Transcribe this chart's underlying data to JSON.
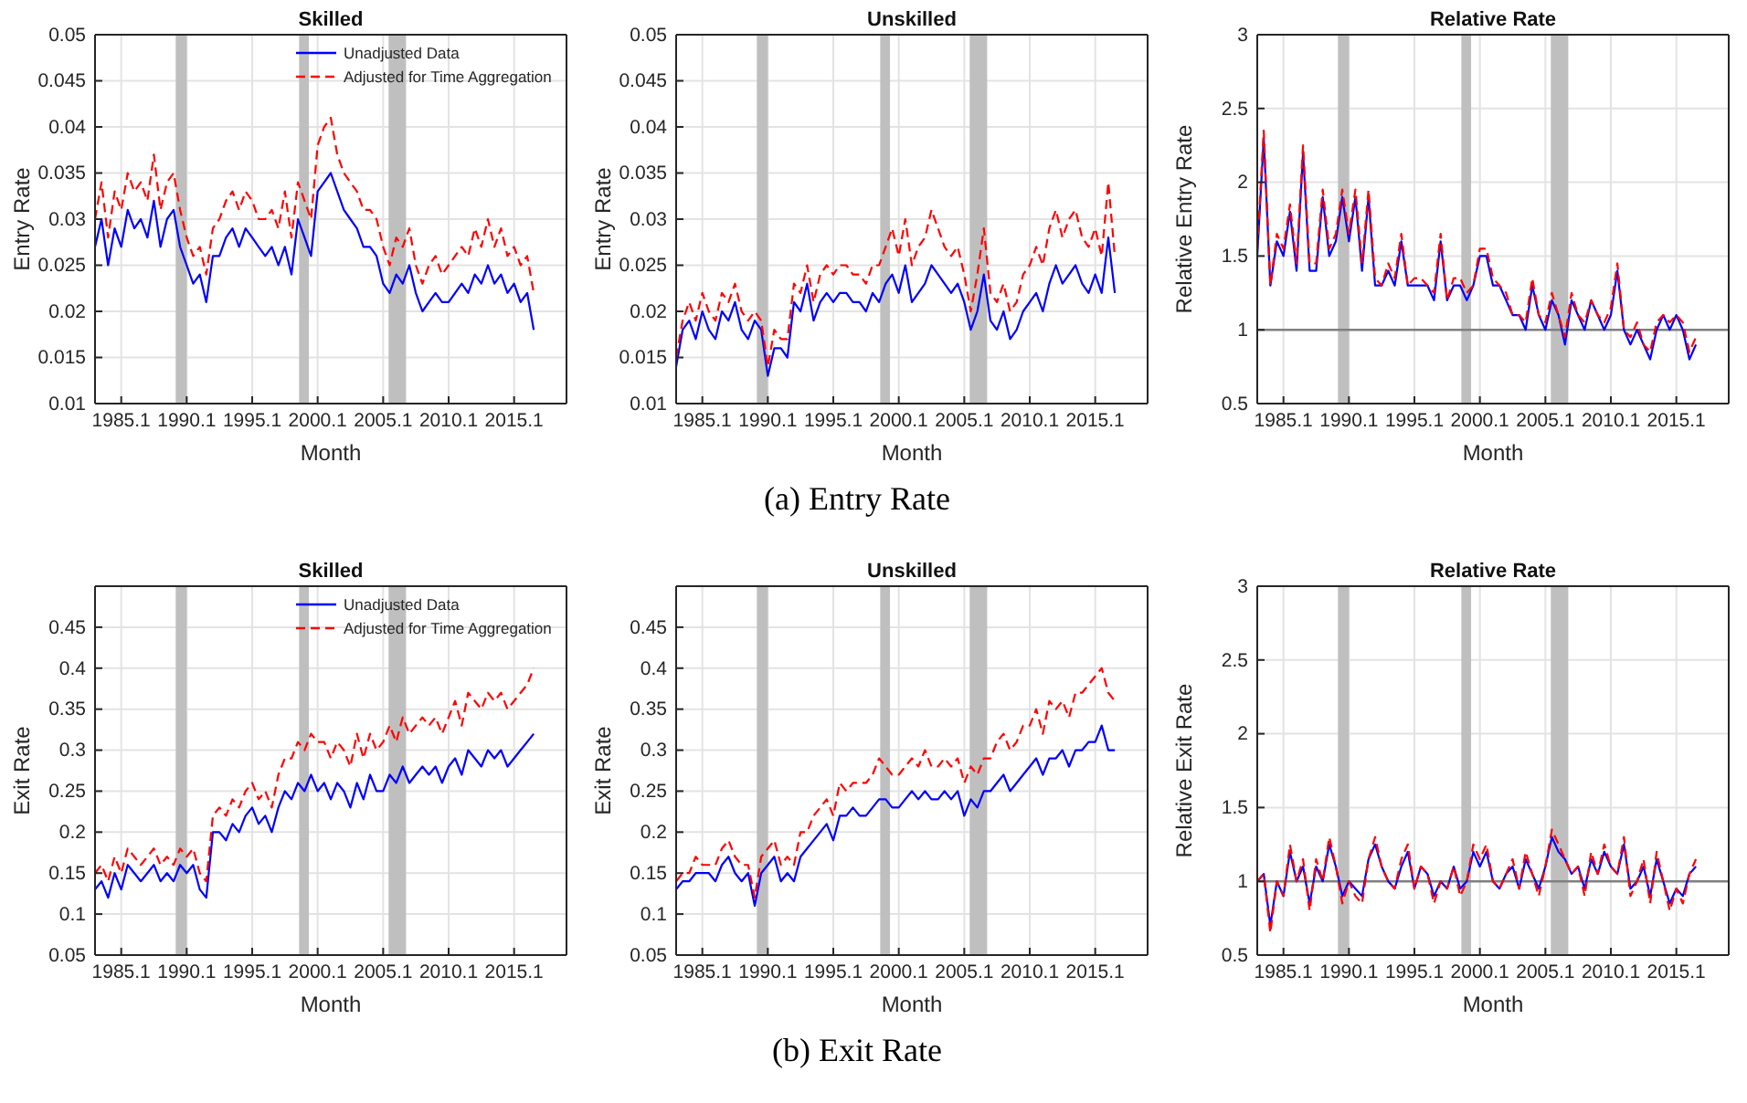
{
  "chart_data": [
    {
      "type": "line",
      "title": "Skilled",
      "xlabel": "Month",
      "ylabel": "Entry Rate",
      "legend": "top right",
      "grid": true,
      "x": [
        "1983-01",
        "1983-07",
        "1984-01",
        "1984-07",
        "1985-01",
        "1985-07",
        "1986-01",
        "1986-07",
        "1987-01",
        "1987-07",
        "1988-01",
        "1988-07",
        "1989-01",
        "1989-07",
        "1990-01",
        "1990-07",
        "1991-01",
        "1991-07",
        "1992-01",
        "1992-07",
        "1993-01",
        "1993-07",
        "1994-01",
        "1994-07",
        "1995-01",
        "1995-07",
        "1996-01",
        "1996-07",
        "1997-01",
        "1997-07",
        "1998-01",
        "1998-07",
        "1999-01",
        "1999-07",
        "2000-01",
        "2000-07",
        "2001-01",
        "2001-07",
        "2002-01",
        "2002-07",
        "2003-01",
        "2003-07",
        "2004-01",
        "2004-07",
        "2005-01",
        "2005-07",
        "2006-01",
        "2006-07",
        "2007-01",
        "2007-07",
        "2008-01",
        "2008-07",
        "2009-01",
        "2009-07",
        "2010-01",
        "2010-07",
        "2011-01",
        "2011-07",
        "2012-01",
        "2012-07",
        "2013-01",
        "2013-07",
        "2014-01",
        "2014-07",
        "2015-01",
        "2015-07",
        "2016-01",
        "2016-07"
      ],
      "xlim": [
        "1983-01",
        "2019-01"
      ],
      "xticks": [
        {
          "value": "1985-01",
          "label": "1985.1"
        },
        {
          "value": "1990-01",
          "label": "1990.1"
        },
        {
          "value": "1995-01",
          "label": "1995.1"
        },
        {
          "value": "2000-01",
          "label": "2000.1"
        },
        {
          "value": "2005-01",
          "label": "2005.1"
        },
        {
          "value": "2010-01",
          "label": "2010.1"
        },
        {
          "value": "2015-01",
          "label": "2015.1"
        }
      ],
      "ylim": [
        0.01,
        0.05
      ],
      "yticks": [
        0.01,
        0.015,
        0.02,
        0.025,
        0.03,
        0.035,
        0.04,
        0.045,
        0.05
      ],
      "bands": [
        {
          "axis": "x",
          "from": "1989-03",
          "to": "1990-01",
          "color": "#bfbfbf"
        },
        {
          "axis": "x",
          "from": "1998-08",
          "to": "1999-05",
          "color": "#bfbfbf"
        },
        {
          "axis": "x",
          "from": "2005-06",
          "to": "2006-10",
          "color": "#bfbfbf"
        }
      ],
      "series": [
        {
          "name": "Unadjusted Data",
          "color": "#0000ff",
          "line_style": "solid",
          "values": [
            0.027,
            0.03,
            0.025,
            0.029,
            0.027,
            0.031,
            0.029,
            0.03,
            0.028,
            0.032,
            0.027,
            0.03,
            0.031,
            0.027,
            0.025,
            0.023,
            0.024,
            0.021,
            0.026,
            0.026,
            0.028,
            0.029,
            0.027,
            0.029,
            0.028,
            0.027,
            0.026,
            0.027,
            0.025,
            0.027,
            0.024,
            0.03,
            0.028,
            0.026,
            0.033,
            0.034,
            0.035,
            0.033,
            0.031,
            0.03,
            0.029,
            0.027,
            0.027,
            0.026,
            0.023,
            0.022,
            0.024,
            0.023,
            0.025,
            0.022,
            0.02,
            0.021,
            0.022,
            0.021,
            0.021,
            0.022,
            0.023,
            0.022,
            0.024,
            0.023,
            0.025,
            0.023,
            0.024,
            0.022,
            0.023,
            0.021,
            0.022,
            0.018
          ]
        },
        {
          "name": "Adjusted for Time Aggregation",
          "color": "#ff0000",
          "line_style": "dashed",
          "values": [
            0.03,
            0.034,
            0.028,
            0.033,
            0.031,
            0.035,
            0.033,
            0.034,
            0.032,
            0.037,
            0.031,
            0.034,
            0.035,
            0.031,
            0.028,
            0.026,
            0.027,
            0.024,
            0.029,
            0.03,
            0.032,
            0.033,
            0.031,
            0.033,
            0.032,
            0.03,
            0.03,
            0.031,
            0.029,
            0.033,
            0.028,
            0.034,
            0.032,
            0.03,
            0.038,
            0.04,
            0.041,
            0.037,
            0.035,
            0.034,
            0.033,
            0.031,
            0.031,
            0.03,
            0.027,
            0.025,
            0.028,
            0.027,
            0.029,
            0.025,
            0.023,
            0.025,
            0.026,
            0.024,
            0.025,
            0.026,
            0.027,
            0.026,
            0.029,
            0.027,
            0.03,
            0.027,
            0.029,
            0.026,
            0.027,
            0.025,
            0.026,
            0.022
          ]
        }
      ]
    },
    {
      "type": "line",
      "title": "Unskilled",
      "xlabel": "Month",
      "ylabel": "Entry Rate",
      "grid": true,
      "annotations": [
        "(a) Entry Rate"
      ],
      "x": [
        "1983-01",
        "1983-07",
        "1984-01",
        "1984-07",
        "1985-01",
        "1985-07",
        "1986-01",
        "1986-07",
        "1987-01",
        "1987-07",
        "1988-01",
        "1988-07",
        "1989-01",
        "1989-07",
        "1990-01",
        "1990-07",
        "1991-01",
        "1991-07",
        "1992-01",
        "1992-07",
        "1993-01",
        "1993-07",
        "1994-01",
        "1994-07",
        "1995-01",
        "1995-07",
        "1996-01",
        "1996-07",
        "1997-01",
        "1997-07",
        "1998-01",
        "1998-07",
        "1999-01",
        "1999-07",
        "2000-01",
        "2000-07",
        "2001-01",
        "2001-07",
        "2002-01",
        "2002-07",
        "2003-01",
        "2003-07",
        "2004-01",
        "2004-07",
        "2005-01",
        "2005-07",
        "2006-01",
        "2006-07",
        "2007-01",
        "2007-07",
        "2008-01",
        "2008-07",
        "2009-01",
        "2009-07",
        "2010-01",
        "2010-07",
        "2011-01",
        "2011-07",
        "2012-01",
        "2012-07",
        "2013-01",
        "2013-07",
        "2014-01",
        "2014-07",
        "2015-01",
        "2015-07",
        "2016-01",
        "2016-07"
      ],
      "xlim": [
        "1983-01",
        "2019-01"
      ],
      "xticks": [
        {
          "value": "1985-01",
          "label": "1985.1"
        },
        {
          "value": "1990-01",
          "label": "1990.1"
        },
        {
          "value": "1995-01",
          "label": "1995.1"
        },
        {
          "value": "2000-01",
          "label": "2000.1"
        },
        {
          "value": "2005-01",
          "label": "2005.1"
        },
        {
          "value": "2010-01",
          "label": "2010.1"
        },
        {
          "value": "2015-01",
          "label": "2015.1"
        }
      ],
      "ylim": [
        0.01,
        0.05
      ],
      "yticks": [
        0.01,
        0.015,
        0.02,
        0.025,
        0.03,
        0.035,
        0.04,
        0.045,
        0.05
      ],
      "bands": [
        {
          "axis": "x",
          "from": "1989-03",
          "to": "1990-01",
          "color": "#bfbfbf"
        },
        {
          "axis": "x",
          "from": "1998-08",
          "to": "1999-05",
          "color": "#bfbfbf"
        },
        {
          "axis": "x",
          "from": "2005-06",
          "to": "2006-10",
          "color": "#bfbfbf"
        }
      ],
      "series": [
        {
          "color": "#0000ff",
          "line_style": "solid",
          "values": [
            0.014,
            0.018,
            0.019,
            0.017,
            0.02,
            0.018,
            0.017,
            0.02,
            0.019,
            0.021,
            0.018,
            0.017,
            0.019,
            0.018,
            0.013,
            0.016,
            0.016,
            0.015,
            0.021,
            0.02,
            0.023,
            0.019,
            0.021,
            0.022,
            0.021,
            0.022,
            0.022,
            0.021,
            0.021,
            0.02,
            0.022,
            0.021,
            0.023,
            0.024,
            0.022,
            0.025,
            0.021,
            0.022,
            0.023,
            0.025,
            0.024,
            0.023,
            0.022,
            0.023,
            0.021,
            0.018,
            0.02,
            0.024,
            0.019,
            0.018,
            0.02,
            0.017,
            0.018,
            0.02,
            0.021,
            0.022,
            0.02,
            0.023,
            0.025,
            0.023,
            0.024,
            0.025,
            0.023,
            0.022,
            0.024,
            0.022,
            0.028,
            0.022
          ]
        },
        {
          "color": "#ff0000",
          "line_style": "dashed",
          "values": [
            0.015,
            0.019,
            0.021,
            0.019,
            0.022,
            0.02,
            0.019,
            0.022,
            0.021,
            0.023,
            0.02,
            0.019,
            0.02,
            0.019,
            0.014,
            0.018,
            0.017,
            0.017,
            0.023,
            0.022,
            0.025,
            0.021,
            0.024,
            0.025,
            0.024,
            0.025,
            0.025,
            0.024,
            0.024,
            0.023,
            0.025,
            0.025,
            0.027,
            0.029,
            0.026,
            0.03,
            0.025,
            0.027,
            0.028,
            0.031,
            0.029,
            0.027,
            0.026,
            0.027,
            0.024,
            0.02,
            0.024,
            0.029,
            0.022,
            0.021,
            0.023,
            0.02,
            0.021,
            0.024,
            0.025,
            0.027,
            0.025,
            0.029,
            0.031,
            0.028,
            0.03,
            0.031,
            0.028,
            0.027,
            0.029,
            0.026,
            0.034,
            0.026
          ]
        }
      ]
    },
    {
      "type": "line",
      "title": "Relative Rate",
      "xlabel": "Month",
      "ylabel": "Relative Entry Rate",
      "grid": true,
      "x": [
        "1983-01",
        "1983-07",
        "1984-01",
        "1984-07",
        "1985-01",
        "1985-07",
        "1986-01",
        "1986-07",
        "1987-01",
        "1987-07",
        "1988-01",
        "1988-07",
        "1989-01",
        "1989-07",
        "1990-01",
        "1990-07",
        "1991-01",
        "1991-07",
        "1992-01",
        "1992-07",
        "1993-01",
        "1993-07",
        "1994-01",
        "1994-07",
        "1995-01",
        "1995-07",
        "1996-01",
        "1996-07",
        "1997-01",
        "1997-07",
        "1998-01",
        "1998-07",
        "1999-01",
        "1999-07",
        "2000-01",
        "2000-07",
        "2001-01",
        "2001-07",
        "2002-01",
        "2002-07",
        "2003-01",
        "2003-07",
        "2004-01",
        "2004-07",
        "2005-01",
        "2005-07",
        "2006-01",
        "2006-07",
        "2007-01",
        "2007-07",
        "2008-01",
        "2008-07",
        "2009-01",
        "2009-07",
        "2010-01",
        "2010-07",
        "2011-01",
        "2011-07",
        "2012-01",
        "2012-07",
        "2013-01",
        "2013-07",
        "2014-01",
        "2014-07",
        "2015-01",
        "2015-07",
        "2016-01",
        "2016-07"
      ],
      "xlim": [
        "1983-01",
        "2019-01"
      ],
      "xticks": [
        {
          "value": "1985-01",
          "label": "1985.1"
        },
        {
          "value": "1990-01",
          "label": "1990.1"
        },
        {
          "value": "1995-01",
          "label": "1995.1"
        },
        {
          "value": "2000-01",
          "label": "2000.1"
        },
        {
          "value": "2005-01",
          "label": "2005.1"
        },
        {
          "value": "2010-01",
          "label": "2010.1"
        },
        {
          "value": "2015-01",
          "label": "2015.1"
        }
      ],
      "ylim": [
        0.5,
        3
      ],
      "yticks": [
        0.5,
        1,
        1.5,
        2,
        2.5,
        3
      ],
      "bands": [
        {
          "axis": "x",
          "from": "1989-03",
          "to": "1990-01",
          "color": "#bfbfbf"
        },
        {
          "axis": "x",
          "from": "1998-08",
          "to": "1999-05",
          "color": "#bfbfbf"
        },
        {
          "axis": "x",
          "from": "2005-06",
          "to": "2006-10",
          "color": "#bfbfbf"
        }
      ],
      "ref_lines": [
        {
          "axis": "y",
          "value": 1,
          "color": "#808080"
        }
      ],
      "series": [
        {
          "color": "#0000ff",
          "line_style": "solid",
          "values": [
            1.5,
            2.3,
            1.3,
            1.6,
            1.5,
            1.8,
            1.4,
            2.2,
            1.4,
            1.4,
            1.9,
            1.5,
            1.6,
            1.9,
            1.6,
            1.9,
            1.4,
            1.9,
            1.3,
            1.3,
            1.4,
            1.3,
            1.6,
            1.3,
            1.3,
            1.3,
            1.3,
            1.2,
            1.6,
            1.2,
            1.3,
            1.3,
            1.2,
            1.3,
            1.5,
            1.5,
            1.3,
            1.3,
            1.2,
            1.1,
            1.1,
            1.0,
            1.3,
            1.1,
            1.0,
            1.2,
            1.1,
            0.9,
            1.2,
            1.1,
            1.0,
            1.2,
            1.1,
            1.0,
            1.1,
            1.4,
            1.0,
            0.9,
            1.0,
            0.9,
            0.8,
            1.0,
            1.1,
            1.0,
            1.1,
            1.0,
            0.8,
            0.9
          ]
        },
        {
          "color": "#ff0000",
          "line_style": "dashed",
          "values": [
            1.55,
            2.35,
            1.3,
            1.65,
            1.55,
            1.85,
            1.45,
            2.25,
            1.45,
            1.45,
            1.95,
            1.55,
            1.65,
            1.95,
            1.65,
            1.95,
            1.45,
            1.95,
            1.35,
            1.3,
            1.45,
            1.35,
            1.65,
            1.3,
            1.35,
            1.35,
            1.3,
            1.25,
            1.65,
            1.2,
            1.35,
            1.35,
            1.25,
            1.3,
            1.55,
            1.55,
            1.35,
            1.3,
            1.25,
            1.1,
            1.1,
            1.05,
            1.35,
            1.1,
            1.05,
            1.25,
            1.1,
            0.95,
            1.25,
            1.1,
            1.05,
            1.2,
            1.1,
            1.05,
            1.15,
            1.45,
            1.0,
            0.95,
            1.05,
            0.9,
            0.85,
            1.05,
            1.1,
            1.05,
            1.1,
            1.05,
            0.85,
            0.95
          ]
        }
      ]
    },
    {
      "type": "line",
      "title": "Skilled",
      "xlabel": "Month",
      "ylabel": "Exit Rate",
      "legend": "top right",
      "grid": true,
      "x": [
        "1983-01",
        "1983-07",
        "1984-01",
        "1984-07",
        "1985-01",
        "1985-07",
        "1986-01",
        "1986-07",
        "1987-01",
        "1987-07",
        "1988-01",
        "1988-07",
        "1989-01",
        "1989-07",
        "1990-01",
        "1990-07",
        "1991-01",
        "1991-07",
        "1992-01",
        "1992-07",
        "1993-01",
        "1993-07",
        "1994-01",
        "1994-07",
        "1995-01",
        "1995-07",
        "1996-01",
        "1996-07",
        "1997-01",
        "1997-07",
        "1998-01",
        "1998-07",
        "1999-01",
        "1999-07",
        "2000-01",
        "2000-07",
        "2001-01",
        "2001-07",
        "2002-01",
        "2002-07",
        "2003-01",
        "2003-07",
        "2004-01",
        "2004-07",
        "2005-01",
        "2005-07",
        "2006-01",
        "2006-07",
        "2007-01",
        "2007-07",
        "2008-01",
        "2008-07",
        "2009-01",
        "2009-07",
        "2010-01",
        "2010-07",
        "2011-01",
        "2011-07",
        "2012-01",
        "2012-07",
        "2013-01",
        "2013-07",
        "2014-01",
        "2014-07",
        "2015-01",
        "2015-07",
        "2016-01",
        "2016-07"
      ],
      "xlim": [
        "1983-01",
        "2019-01"
      ],
      "xticks": [
        {
          "value": "1985-01",
          "label": "1985.1"
        },
        {
          "value": "1990-01",
          "label": "1990.1"
        },
        {
          "value": "1995-01",
          "label": "1995.1"
        },
        {
          "value": "2000-01",
          "label": "2000.1"
        },
        {
          "value": "2005-01",
          "label": "2005.1"
        },
        {
          "value": "2010-01",
          "label": "2010.1"
        },
        {
          "value": "2015-01",
          "label": "2015.1"
        }
      ],
      "ylim": [
        0.05,
        0.5
      ],
      "yticks": [
        0.05,
        0.1,
        0.15,
        0.2,
        0.25,
        0.3,
        0.35,
        0.4,
        0.45
      ],
      "bands": [
        {
          "axis": "x",
          "from": "1989-03",
          "to": "1990-01",
          "color": "#bfbfbf"
        },
        {
          "axis": "x",
          "from": "1998-08",
          "to": "1999-05",
          "color": "#bfbfbf"
        },
        {
          "axis": "x",
          "from": "2005-06",
          "to": "2006-10",
          "color": "#bfbfbf"
        }
      ],
      "series": [
        {
          "name": "Unadjusted Data",
          "color": "#0000ff",
          "line_style": "solid",
          "values": [
            0.13,
            0.14,
            0.12,
            0.15,
            0.13,
            0.16,
            0.15,
            0.14,
            0.15,
            0.16,
            0.14,
            0.15,
            0.14,
            0.16,
            0.15,
            0.16,
            0.13,
            0.12,
            0.2,
            0.2,
            0.19,
            0.21,
            0.2,
            0.22,
            0.23,
            0.21,
            0.22,
            0.2,
            0.23,
            0.25,
            0.24,
            0.26,
            0.25,
            0.27,
            0.25,
            0.26,
            0.24,
            0.26,
            0.25,
            0.23,
            0.26,
            0.24,
            0.27,
            0.25,
            0.25,
            0.27,
            0.26,
            0.28,
            0.26,
            0.27,
            0.28,
            0.27,
            0.28,
            0.26,
            0.28,
            0.29,
            0.27,
            0.3,
            0.29,
            0.28,
            0.3,
            0.29,
            0.3,
            0.28,
            0.29,
            0.3,
            0.31,
            0.32
          ]
        },
        {
          "name": "Adjusted for Time Aggregation",
          "color": "#ff0000",
          "line_style": "dashed",
          "values": [
            0.15,
            0.16,
            0.14,
            0.17,
            0.15,
            0.18,
            0.17,
            0.16,
            0.17,
            0.18,
            0.16,
            0.17,
            0.16,
            0.18,
            0.17,
            0.18,
            0.15,
            0.14,
            0.22,
            0.23,
            0.22,
            0.24,
            0.23,
            0.25,
            0.26,
            0.24,
            0.25,
            0.23,
            0.27,
            0.29,
            0.29,
            0.31,
            0.3,
            0.32,
            0.31,
            0.31,
            0.29,
            0.31,
            0.3,
            0.28,
            0.32,
            0.29,
            0.32,
            0.3,
            0.31,
            0.33,
            0.31,
            0.34,
            0.32,
            0.33,
            0.34,
            0.33,
            0.34,
            0.32,
            0.34,
            0.36,
            0.33,
            0.37,
            0.36,
            0.35,
            0.37,
            0.36,
            0.37,
            0.35,
            0.36,
            0.37,
            0.38,
            0.4
          ]
        }
      ]
    },
    {
      "type": "line",
      "title": "Unskilled",
      "xlabel": "Month",
      "ylabel": "Exit Rate",
      "grid": true,
      "annotations": [
        "(b) Exit Rate"
      ],
      "x": [
        "1983-01",
        "1983-07",
        "1984-01",
        "1984-07",
        "1985-01",
        "1985-07",
        "1986-01",
        "1986-07",
        "1987-01",
        "1987-07",
        "1988-01",
        "1988-07",
        "1989-01",
        "1989-07",
        "1990-01",
        "1990-07",
        "1991-01",
        "1991-07",
        "1992-01",
        "1992-07",
        "1993-01",
        "1993-07",
        "1994-01",
        "1994-07",
        "1995-01",
        "1995-07",
        "1996-01",
        "1996-07",
        "1997-01",
        "1997-07",
        "1998-01",
        "1998-07",
        "1999-01",
        "1999-07",
        "2000-01",
        "2000-07",
        "2001-01",
        "2001-07",
        "2002-01",
        "2002-07",
        "2003-01",
        "2003-07",
        "2004-01",
        "2004-07",
        "2005-01",
        "2005-07",
        "2006-01",
        "2006-07",
        "2007-01",
        "2007-07",
        "2008-01",
        "2008-07",
        "2009-01",
        "2009-07",
        "2010-01",
        "2010-07",
        "2011-01",
        "2011-07",
        "2012-01",
        "2012-07",
        "2013-01",
        "2013-07",
        "2014-01",
        "2014-07",
        "2015-01",
        "2015-07",
        "2016-01",
        "2016-07"
      ],
      "xlim": [
        "1983-01",
        "2019-01"
      ],
      "xticks": [
        {
          "value": "1985-01",
          "label": "1985.1"
        },
        {
          "value": "1990-01",
          "label": "1990.1"
        },
        {
          "value": "1995-01",
          "label": "1995.1"
        },
        {
          "value": "2000-01",
          "label": "2000.1"
        },
        {
          "value": "2005-01",
          "label": "2005.1"
        },
        {
          "value": "2010-01",
          "label": "2010.1"
        },
        {
          "value": "2015-01",
          "label": "2015.1"
        }
      ],
      "ylim": [
        0.05,
        0.5
      ],
      "yticks": [
        0.05,
        0.1,
        0.15,
        0.2,
        0.25,
        0.3,
        0.35,
        0.4,
        0.45
      ],
      "bands": [
        {
          "axis": "x",
          "from": "1989-03",
          "to": "1990-01",
          "color": "#bfbfbf"
        },
        {
          "axis": "x",
          "from": "1998-08",
          "to": "1999-05",
          "color": "#bfbfbf"
        },
        {
          "axis": "x",
          "from": "2005-06",
          "to": "2006-10",
          "color": "#bfbfbf"
        }
      ],
      "series": [
        {
          "color": "#0000ff",
          "line_style": "solid",
          "values": [
            0.13,
            0.14,
            0.14,
            0.15,
            0.15,
            0.15,
            0.14,
            0.16,
            0.17,
            0.15,
            0.14,
            0.15,
            0.11,
            0.15,
            0.16,
            0.17,
            0.14,
            0.15,
            0.14,
            0.17,
            0.18,
            0.19,
            0.2,
            0.21,
            0.19,
            0.22,
            0.22,
            0.23,
            0.22,
            0.22,
            0.23,
            0.24,
            0.24,
            0.23,
            0.23,
            0.24,
            0.25,
            0.24,
            0.25,
            0.24,
            0.24,
            0.25,
            0.24,
            0.25,
            0.22,
            0.24,
            0.23,
            0.25,
            0.25,
            0.26,
            0.27,
            0.25,
            0.26,
            0.27,
            0.28,
            0.29,
            0.27,
            0.29,
            0.29,
            0.3,
            0.28,
            0.3,
            0.3,
            0.31,
            0.31,
            0.33,
            0.3,
            0.3
          ]
        },
        {
          "color": "#ff0000",
          "line_style": "dashed",
          "values": [
            0.14,
            0.15,
            0.15,
            0.17,
            0.16,
            0.16,
            0.16,
            0.18,
            0.19,
            0.17,
            0.16,
            0.16,
            0.12,
            0.17,
            0.18,
            0.19,
            0.16,
            0.17,
            0.16,
            0.2,
            0.2,
            0.22,
            0.23,
            0.24,
            0.22,
            0.26,
            0.25,
            0.26,
            0.26,
            0.26,
            0.27,
            0.29,
            0.28,
            0.27,
            0.27,
            0.28,
            0.29,
            0.28,
            0.3,
            0.28,
            0.28,
            0.29,
            0.28,
            0.29,
            0.26,
            0.28,
            0.27,
            0.29,
            0.29,
            0.31,
            0.32,
            0.3,
            0.31,
            0.33,
            0.33,
            0.35,
            0.32,
            0.36,
            0.35,
            0.36,
            0.34,
            0.37,
            0.37,
            0.38,
            0.39,
            0.4,
            0.37,
            0.36
          ]
        }
      ]
    },
    {
      "type": "line",
      "title": "Relative Rate",
      "xlabel": "Month",
      "ylabel": "Relative Exit Rate",
      "grid": true,
      "x": [
        "1983-01",
        "1983-07",
        "1984-01",
        "1984-07",
        "1985-01",
        "1985-07",
        "1986-01",
        "1986-07",
        "1987-01",
        "1987-07",
        "1988-01",
        "1988-07",
        "1989-01",
        "1989-07",
        "1990-01",
        "1990-07",
        "1991-01",
        "1991-07",
        "1992-01",
        "1992-07",
        "1993-01",
        "1993-07",
        "1994-01",
        "1994-07",
        "1995-01",
        "1995-07",
        "1996-01",
        "1996-07",
        "1997-01",
        "1997-07",
        "1998-01",
        "1998-07",
        "1999-01",
        "1999-07",
        "2000-01",
        "2000-07",
        "2001-01",
        "2001-07",
        "2002-01",
        "2002-07",
        "2003-01",
        "2003-07",
        "2004-01",
        "2004-07",
        "2005-01",
        "2005-07",
        "2006-01",
        "2006-07",
        "2007-01",
        "2007-07",
        "2008-01",
        "2008-07",
        "2009-01",
        "2009-07",
        "2010-01",
        "2010-07",
        "2011-01",
        "2011-07",
        "2012-01",
        "2012-07",
        "2013-01",
        "2013-07",
        "2014-01",
        "2014-07",
        "2015-01",
        "2015-07",
        "2016-01",
        "2016-07"
      ],
      "xlim": [
        "1983-01",
        "2019-01"
      ],
      "xticks": [
        {
          "value": "1985-01",
          "label": "1985.1"
        },
        {
          "value": "1990-01",
          "label": "1990.1"
        },
        {
          "value": "1995-01",
          "label": "1995.1"
        },
        {
          "value": "2000-01",
          "label": "2000.1"
        },
        {
          "value": "2005-01",
          "label": "2005.1"
        },
        {
          "value": "2010-01",
          "label": "2010.1"
        },
        {
          "value": "2015-01",
          "label": "2015.1"
        }
      ],
      "ylim": [
        0.5,
        3
      ],
      "yticks": [
        0.5,
        1,
        1.5,
        2,
        2.5,
        3
      ],
      "bands": [
        {
          "axis": "x",
          "from": "1989-03",
          "to": "1990-01",
          "color": "#bfbfbf"
        },
        {
          "axis": "x",
          "from": "1998-08",
          "to": "1999-05",
          "color": "#bfbfbf"
        },
        {
          "axis": "x",
          "from": "2005-06",
          "to": "2006-10",
          "color": "#bfbfbf"
        }
      ],
      "ref_lines": [
        {
          "axis": "y",
          "value": 1,
          "color": "#808080"
        }
      ],
      "series": [
        {
          "color": "#0000ff",
          "line_style": "solid",
          "values": [
            1.0,
            1.05,
            0.7,
            1.0,
            0.9,
            1.2,
            1.0,
            1.1,
            0.85,
            1.1,
            1.0,
            1.25,
            1.1,
            0.9,
            1.0,
            0.95,
            0.9,
            1.15,
            1.25,
            1.1,
            1.0,
            0.95,
            1.1,
            1.2,
            0.95,
            1.1,
            1.05,
            0.9,
            1.0,
            0.95,
            1.1,
            0.95,
            1.0,
            1.2,
            1.1,
            1.2,
            1.0,
            0.95,
            1.05,
            1.1,
            0.95,
            1.15,
            1.05,
            0.95,
            1.1,
            1.3,
            1.2,
            1.15,
            1.05,
            1.1,
            0.95,
            1.15,
            1.05,
            1.2,
            1.1,
            1.05,
            1.25,
            0.95,
            1.0,
            1.1,
            0.9,
            1.15,
            1.0,
            0.85,
            0.95,
            0.9,
            1.05,
            1.1
          ]
        },
        {
          "color": "#ff0000",
          "line_style": "dashed",
          "values": [
            1.0,
            1.05,
            0.65,
            1.0,
            0.9,
            1.25,
            1.0,
            1.15,
            0.8,
            1.15,
            1.0,
            1.3,
            1.1,
            0.85,
            1.0,
            0.9,
            0.85,
            1.15,
            1.3,
            1.1,
            1.0,
            0.95,
            1.15,
            1.25,
            0.95,
            1.1,
            1.05,
            0.85,
            1.0,
            0.95,
            1.1,
            0.9,
            1.0,
            1.25,
            1.15,
            1.25,
            1.0,
            0.95,
            1.05,
            1.15,
            0.95,
            1.2,
            1.05,
            0.9,
            1.1,
            1.35,
            1.25,
            1.15,
            1.05,
            1.1,
            0.9,
            1.2,
            1.05,
            1.25,
            1.1,
            1.05,
            1.3,
            0.9,
            1.0,
            1.15,
            0.85,
            1.2,
            1.0,
            0.8,
            0.95,
            0.85,
            1.05,
            1.15
          ]
        }
      ]
    }
  ]
}
